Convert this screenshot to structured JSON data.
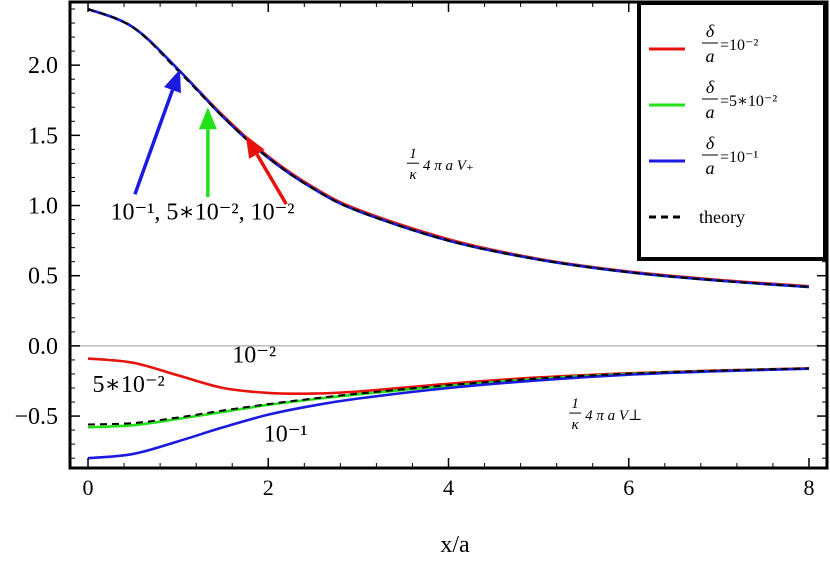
{
  "chart_data": {
    "type": "line",
    "xlabel": "x/a",
    "xlim": [
      -0.2,
      8.2
    ],
    "ylim": [
      -0.87,
      2.45
    ],
    "xticks": [
      0,
      2,
      4,
      6,
      8
    ],
    "xtick_labels": [
      "0",
      "2",
      "4",
      "6",
      "8"
    ],
    "yticks": [
      -0.5,
      0.0,
      0.5,
      1.0,
      1.5,
      2.0
    ],
    "ytick_labels": [
      "−0.5",
      "0.0",
      "0.5",
      "1.0",
      "1.5",
      "2.0"
    ],
    "zero_line": true,
    "legend_position": "top-right",
    "legend": [
      {
        "num": "δ",
        "den": "a",
        "value": "=10⁻²",
        "color": "#e8120c",
        "dash": false
      },
      {
        "num": "δ",
        "den": "a",
        "value": "=5∗10⁻²",
        "color": "#22e01a",
        "dash": false
      },
      {
        "num": "δ",
        "den": "a",
        "value": "=10⁻¹",
        "color": "#1a1ae0",
        "dash": false
      },
      {
        "num": "",
        "den": "",
        "value": "theory",
        "color": "#000000",
        "dash": true
      }
    ],
    "series": [
      {
        "name": "δ/a=10⁻²",
        "group": "V+",
        "color": "#e8120c",
        "x": [
          0,
          0.5,
          1,
          1.5,
          2,
          2.5,
          3,
          4,
          5,
          6,
          7,
          8
        ],
        "y": [
          2.4,
          2.27,
          1.97,
          1.64,
          1.35,
          1.13,
          0.97,
          0.76,
          0.62,
          0.53,
          0.47,
          0.425
        ]
      },
      {
        "name": "δ/a=5∗10⁻²",
        "group": "V+",
        "color": "#22e01a",
        "x": [
          0,
          0.5,
          1,
          1.5,
          2,
          2.5,
          3,
          4,
          5,
          6,
          7,
          8
        ],
        "y": [
          2.4,
          2.27,
          1.97,
          1.63,
          1.34,
          1.12,
          0.96,
          0.75,
          0.615,
          0.525,
          0.465,
          0.42
        ]
      },
      {
        "name": "δ/a=10⁻¹",
        "group": "V+",
        "color": "#1a1ae0",
        "x": [
          0,
          0.5,
          1,
          1.5,
          2,
          2.5,
          3,
          4,
          5,
          6,
          7,
          8
        ],
        "y": [
          2.4,
          2.27,
          1.97,
          1.63,
          1.34,
          1.12,
          0.96,
          0.75,
          0.615,
          0.525,
          0.465,
          0.42
        ]
      },
      {
        "name": "theory",
        "group": "V+",
        "color": "#000000",
        "dash": true,
        "x": [
          0,
          0.5,
          1,
          1.5,
          2,
          2.5,
          3,
          4,
          5,
          6,
          7,
          8
        ],
        "y": [
          2.4,
          2.27,
          1.96,
          1.63,
          1.34,
          1.12,
          0.96,
          0.75,
          0.615,
          0.525,
          0.465,
          0.42
        ]
      },
      {
        "name": "δ/a=10⁻²",
        "group": "Vperp",
        "color": "#e8120c",
        "x": [
          0,
          0.5,
          1,
          1.5,
          2,
          2.5,
          3,
          4,
          5,
          6,
          7,
          8
        ],
        "y": [
          -0.09,
          -0.12,
          -0.21,
          -0.3,
          -0.335,
          -0.34,
          -0.325,
          -0.27,
          -0.225,
          -0.195,
          -0.175,
          -0.16
        ]
      },
      {
        "name": "δ/a=5∗10⁻²",
        "group": "Vperp",
        "color": "#22e01a",
        "x": [
          0,
          0.5,
          1,
          1.5,
          2,
          2.5,
          3,
          4,
          5,
          6,
          7,
          8
        ],
        "y": [
          -0.58,
          -0.565,
          -0.52,
          -0.47,
          -0.42,
          -0.38,
          -0.345,
          -0.285,
          -0.235,
          -0.2,
          -0.178,
          -0.162
        ]
      },
      {
        "name": "δ/a=10⁻¹",
        "group": "Vperp",
        "color": "#1a1ae0",
        "x": [
          0,
          0.5,
          1,
          1.5,
          2,
          2.5,
          3,
          4,
          5,
          6,
          7,
          8
        ],
        "y": [
          -0.8,
          -0.77,
          -0.68,
          -0.58,
          -0.49,
          -0.425,
          -0.375,
          -0.3,
          -0.245,
          -0.205,
          -0.18,
          -0.163
        ]
      },
      {
        "name": "theory",
        "group": "Vperp",
        "color": "#000000",
        "dash": true,
        "x": [
          0,
          0.5,
          1,
          1.5,
          2,
          2.5,
          3,
          4,
          5,
          6,
          7,
          8
        ],
        "y": [
          -0.56,
          -0.55,
          -0.51,
          -0.46,
          -0.415,
          -0.375,
          -0.34,
          -0.28,
          -0.232,
          -0.198,
          -0.176,
          -0.16
        ]
      }
    ],
    "annotations": [
      {
        "text": "10⁻¹, 5∗10⁻², 10⁻²",
        "x": 0.25,
        "y": 0.9,
        "anchor": "start"
      },
      {
        "text": "10⁻²",
        "x": 1.6,
        "y": -0.12,
        "anchor": "start"
      },
      {
        "text": "5∗10⁻²",
        "x": 0.05,
        "y": -0.33,
        "anchor": "start"
      },
      {
        "text": "10⁻¹",
        "x": 1.95,
        "y": -0.68,
        "anchor": "start"
      }
    ],
    "curve_labels": [
      {
        "num": "1",
        "den": "κ",
        "expr": "4 π a V₊",
        "x": 3.55,
        "y": 1.28
      },
      {
        "num": "1",
        "den": "κ",
        "expr": "4 π a V⊥",
        "x": 5.35,
        "y": -0.5
      }
    ],
    "arrows": [
      {
        "color": "#1a1ae0",
        "from": [
          0.52,
          1.08
        ],
        "to": [
          1.02,
          1.97
        ]
      },
      {
        "color": "#22e01a",
        "from": [
          1.33,
          1.06
        ],
        "to": [
          1.33,
          1.7
        ]
      },
      {
        "color": "#e8120c",
        "from": [
          2.2,
          1.01
        ],
        "to": [
          1.75,
          1.5
        ]
      }
    ]
  }
}
